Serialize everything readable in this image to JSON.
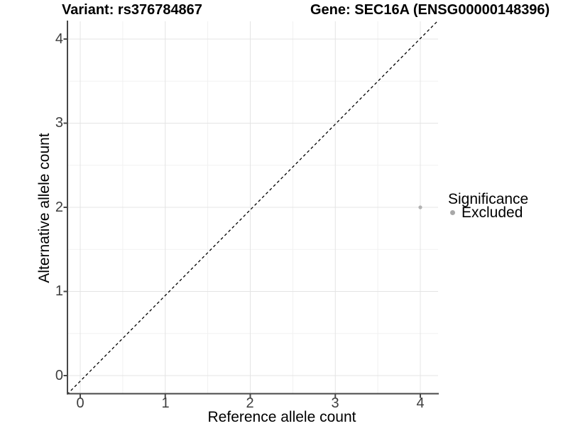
{
  "chart_data": {
    "type": "scatter",
    "titles": {
      "left": "Variant: rs376784867",
      "right": "Gene: SEC16A (ENSG00000148396)"
    },
    "xlabel": "Reference allele count",
    "ylabel": "Alternative allele count",
    "xlim": [
      -0.15,
      4.2
    ],
    "ylim": [
      -0.2,
      4.2
    ],
    "x_ticks": [
      "0",
      "1",
      "2",
      "3",
      "4"
    ],
    "y_ticks": [
      "0",
      "1",
      "2",
      "3",
      "4"
    ],
    "grid": {
      "major": true,
      "minor": true,
      "major_color": "#e4e4e4",
      "minor_color": "#f1f1f1"
    },
    "reference_line": {
      "type": "identity y=x",
      "style": "dashed",
      "color": "#000000"
    },
    "series": [
      {
        "name": "Excluded",
        "color": "#b2b2b2",
        "points": [
          {
            "x": 4,
            "y": 2
          }
        ]
      }
    ],
    "legend": {
      "title": "Significance",
      "position": "right",
      "entries": [
        {
          "label": "Excluded",
          "color": "#a8a8a8"
        }
      ]
    }
  },
  "colors": {
    "axis_line": "#474747",
    "tick_text": "#3d3d3d",
    "background": "#ffffff"
  }
}
